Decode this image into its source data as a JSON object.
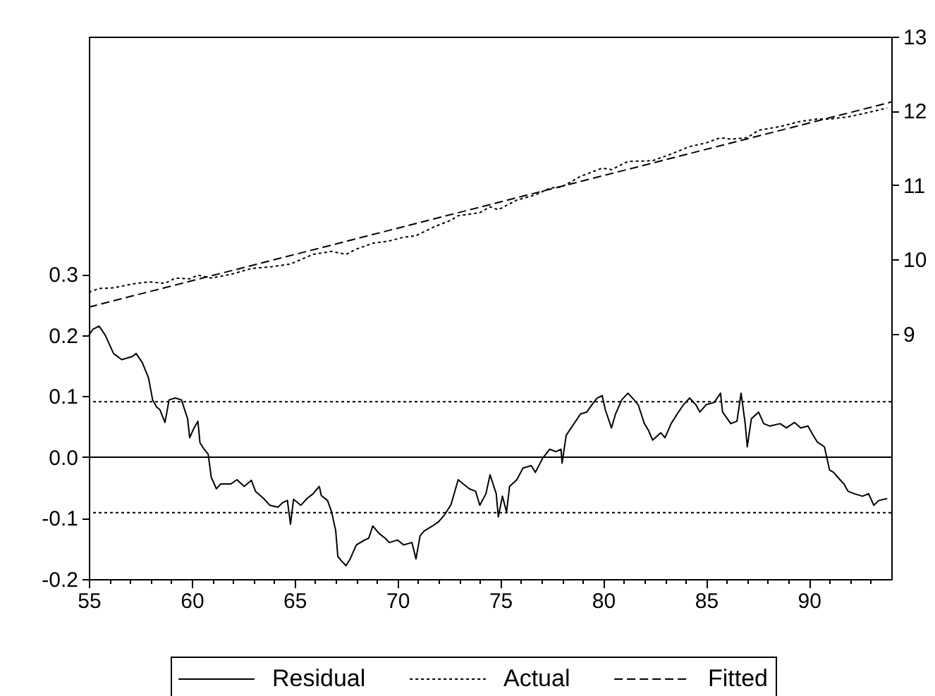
{
  "chart_data": {
    "type": "line",
    "legend": "bottom",
    "grid": false,
    "xlim": [
      55,
      94
    ],
    "xticks": [
      55,
      {
        "value": 56,
        "label": null
      },
      {
        "value": 57,
        "label": null
      },
      {
        "value": 58,
        "label": null
      },
      {
        "value": 59,
        "label": null
      },
      60,
      {
        "value": 61,
        "label": null
      },
      {
        "value": 62,
        "label": null
      },
      {
        "value": 63,
        "label": null
      },
      {
        "value": 64,
        "label": null
      },
      65,
      {
        "value": 66,
        "label": null
      },
      {
        "value": 67,
        "label": null
      },
      {
        "value": 68,
        "label": null
      },
      {
        "value": 69,
        "label": null
      },
      70,
      {
        "value": 71,
        "label": null
      },
      {
        "value": 72,
        "label": null
      },
      {
        "value": 73,
        "label": null
      },
      {
        "value": 74,
        "label": null
      },
      75,
      {
        "value": 76,
        "label": null
      },
      {
        "value": 77,
        "label": null
      },
      {
        "value": 78,
        "label": null
      },
      {
        "value": 79,
        "label": null
      },
      80,
      {
        "value": 81,
        "label": null
      },
      {
        "value": 82,
        "label": null
      },
      {
        "value": 83,
        "label": null
      },
      {
        "value": 84,
        "label": null
      },
      85,
      {
        "value": 86,
        "label": null
      },
      {
        "value": 87,
        "label": null
      },
      {
        "value": 88,
        "label": null
      },
      {
        "value": 89,
        "label": null
      },
      90,
      {
        "value": 91,
        "label": null
      },
      {
        "value": 92,
        "label": null
      },
      {
        "value": 93,
        "label": null
      }
    ],
    "ylim": [
      -0.2,
      0.69
    ],
    "yticks": [
      -0.2,
      -0.1,
      {
        "value": 0,
        "label": "0.0"
      },
      0.1,
      0.2,
      0.3
    ],
    "y2lim": [
      5.7,
      13
    ],
    "y2ticks": [
      9,
      10,
      11,
      12,
      13
    ],
    "ref_lines": [
      {
        "axis": "y",
        "value": 0,
        "color": "#000000",
        "line_style": "solid"
      },
      {
        "axis": "y",
        "value": 0.091,
        "color": "#000000",
        "line_style": "dotted"
      },
      {
        "axis": "y",
        "value": -0.091,
        "color": "#000000",
        "line_style": "dotted"
      }
    ],
    "series": [
      {
        "name": "Residual",
        "color": "#000000",
        "line_style": "solid",
        "x": [
          55.0,
          55.2,
          55.5,
          55.8,
          56.2,
          56.6,
          57.1,
          57.3,
          57.6,
          57.9,
          58.1,
          58.3,
          58.45,
          58.7,
          58.9,
          59.2,
          59.5,
          59.8,
          59.9,
          60.1,
          60.3,
          60.4,
          60.6,
          60.8,
          60.95,
          61.2,
          61.4,
          61.9,
          62.2,
          62.55,
          62.9,
          63.1,
          63.5,
          63.8,
          64.2,
          64.4,
          64.65,
          64.8,
          64.95,
          65.3,
          65.6,
          65.9,
          66.2,
          66.3,
          66.6,
          66.8,
          67.0,
          67.1,
          67.3,
          67.5,
          67.7,
          68.0,
          68.4,
          68.6,
          68.8,
          69.1,
          69.4,
          69.6,
          70.0,
          70.3,
          70.7,
          70.9,
          71.1,
          71.3,
          71.7,
          72.0,
          72.3,
          72.6,
          72.95,
          73.2,
          73.5,
          73.8,
          74.0,
          74.3,
          74.5,
          74.8,
          74.9,
          75.1,
          75.3,
          75.45,
          75.8,
          76.1,
          76.5,
          76.7,
          77.05,
          77.4,
          77.7,
          77.95,
          78.0,
          78.2,
          78.5,
          78.9,
          79.2,
          79.45,
          79.7,
          79.95,
          80.1,
          80.4,
          80.6,
          80.9,
          81.2,
          81.5,
          81.7,
          82.0,
          82.2,
          82.4,
          82.8,
          83.0,
          83.3,
          83.6,
          83.9,
          84.2,
          84.5,
          84.7,
          85.0,
          85.4,
          85.7,
          85.8,
          86.2,
          86.5,
          86.7,
          86.9,
          87.0,
          87.2,
          87.55,
          87.8,
          88.1,
          88.6,
          88.9,
          89.3,
          89.6,
          89.95,
          90.2,
          90.4,
          90.75,
          91.0,
          91.2,
          91.4,
          91.7,
          91.9,
          92.2,
          92.6,
          92.9,
          93.15,
          93.4,
          93.8
        ],
        "values": [
          0.2,
          0.21,
          0.215,
          0.2,
          0.17,
          0.16,
          0.165,
          0.17,
          0.155,
          0.13,
          0.094,
          0.082,
          0.078,
          0.057,
          0.094,
          0.097,
          0.094,
          0.063,
          0.032,
          0.047,
          0.059,
          0.024,
          0.013,
          0.005,
          -0.033,
          -0.052,
          -0.044,
          -0.044,
          -0.037,
          -0.048,
          -0.038,
          -0.056,
          -0.068,
          -0.079,
          -0.082,
          -0.075,
          -0.071,
          -0.11,
          -0.069,
          -0.079,
          -0.068,
          -0.06,
          -0.048,
          -0.063,
          -0.071,
          -0.09,
          -0.121,
          -0.163,
          -0.171,
          -0.178,
          -0.167,
          -0.144,
          -0.136,
          -0.133,
          -0.113,
          -0.125,
          -0.133,
          -0.14,
          -0.136,
          -0.144,
          -0.14,
          -0.167,
          -0.129,
          -0.121,
          -0.113,
          -0.106,
          -0.094,
          -0.078,
          -0.037,
          -0.044,
          -0.052,
          -0.056,
          -0.079,
          -0.06,
          -0.029,
          -0.06,
          -0.098,
          -0.064,
          -0.09,
          -0.048,
          -0.037,
          -0.018,
          -0.014,
          -0.025,
          -0.002,
          0.013,
          0.009,
          0.013,
          -0.01,
          0.036,
          0.051,
          0.071,
          0.074,
          0.086,
          0.097,
          0.101,
          0.078,
          0.048,
          0.071,
          0.094,
          0.105,
          0.094,
          0.086,
          0.055,
          0.044,
          0.028,
          0.04,
          0.032,
          0.055,
          0.071,
          0.086,
          0.097,
          0.086,
          0.074,
          0.086,
          0.09,
          0.105,
          0.074,
          0.055,
          0.059,
          0.105,
          0.055,
          0.017,
          0.063,
          0.074,
          0.055,
          0.051,
          0.055,
          0.048,
          0.057,
          0.048,
          0.051,
          0.036,
          0.025,
          0.017,
          -0.021,
          -0.025,
          -0.033,
          -0.044,
          -0.056,
          -0.06,
          -0.064,
          -0.06,
          -0.079,
          -0.071,
          -0.068
        ]
      },
      {
        "name": "Actual",
        "color": "#000000",
        "line_style": "dotted",
        "axis": "y2",
        "x": [
          55.0,
          55.5,
          56.2,
          57.1,
          57.9,
          58.7,
          59.2,
          59.9,
          60.3,
          60.95,
          61.9,
          62.9,
          63.8,
          64.8,
          65.9,
          66.8,
          67.5,
          68.0,
          68.8,
          69.6,
          70.3,
          70.9,
          71.7,
          72.6,
          72.95,
          74.0,
          74.5,
          74.9,
          75.8,
          76.7,
          77.4,
          78.0,
          78.9,
          79.95,
          80.4,
          81.2,
          82.4,
          83.3,
          84.2,
          85.0,
          85.7,
          86.2,
          87.0,
          87.55,
          88.6,
          89.6,
          90.4,
          91.0,
          91.9,
          92.9,
          93.8
        ],
        "values": [
          9.56,
          9.61,
          9.62,
          9.67,
          9.7,
          9.68,
          9.75,
          9.74,
          9.79,
          9.75,
          9.8,
          9.88,
          9.9,
          9.94,
          10.07,
          10.11,
          10.07,
          10.14,
          10.22,
          10.25,
          10.3,
          10.32,
          10.43,
          10.53,
          10.59,
          10.63,
          10.71,
          10.67,
          10.8,
          10.87,
          10.96,
          10.98,
          11.12,
          11.23,
          11.21,
          11.32,
          11.33,
          11.42,
          11.52,
          11.57,
          11.64,
          11.62,
          11.64,
          11.74,
          11.79,
          11.86,
          11.89,
          11.89,
          11.92,
          11.98,
          12.04
        ]
      },
      {
        "name": "Fitted",
        "color": "#000000",
        "line_style": "dashed",
        "axis": "y2",
        "x": [
          55,
          94
        ],
        "values": [
          9.36,
          12.12
        ]
      }
    ]
  }
}
